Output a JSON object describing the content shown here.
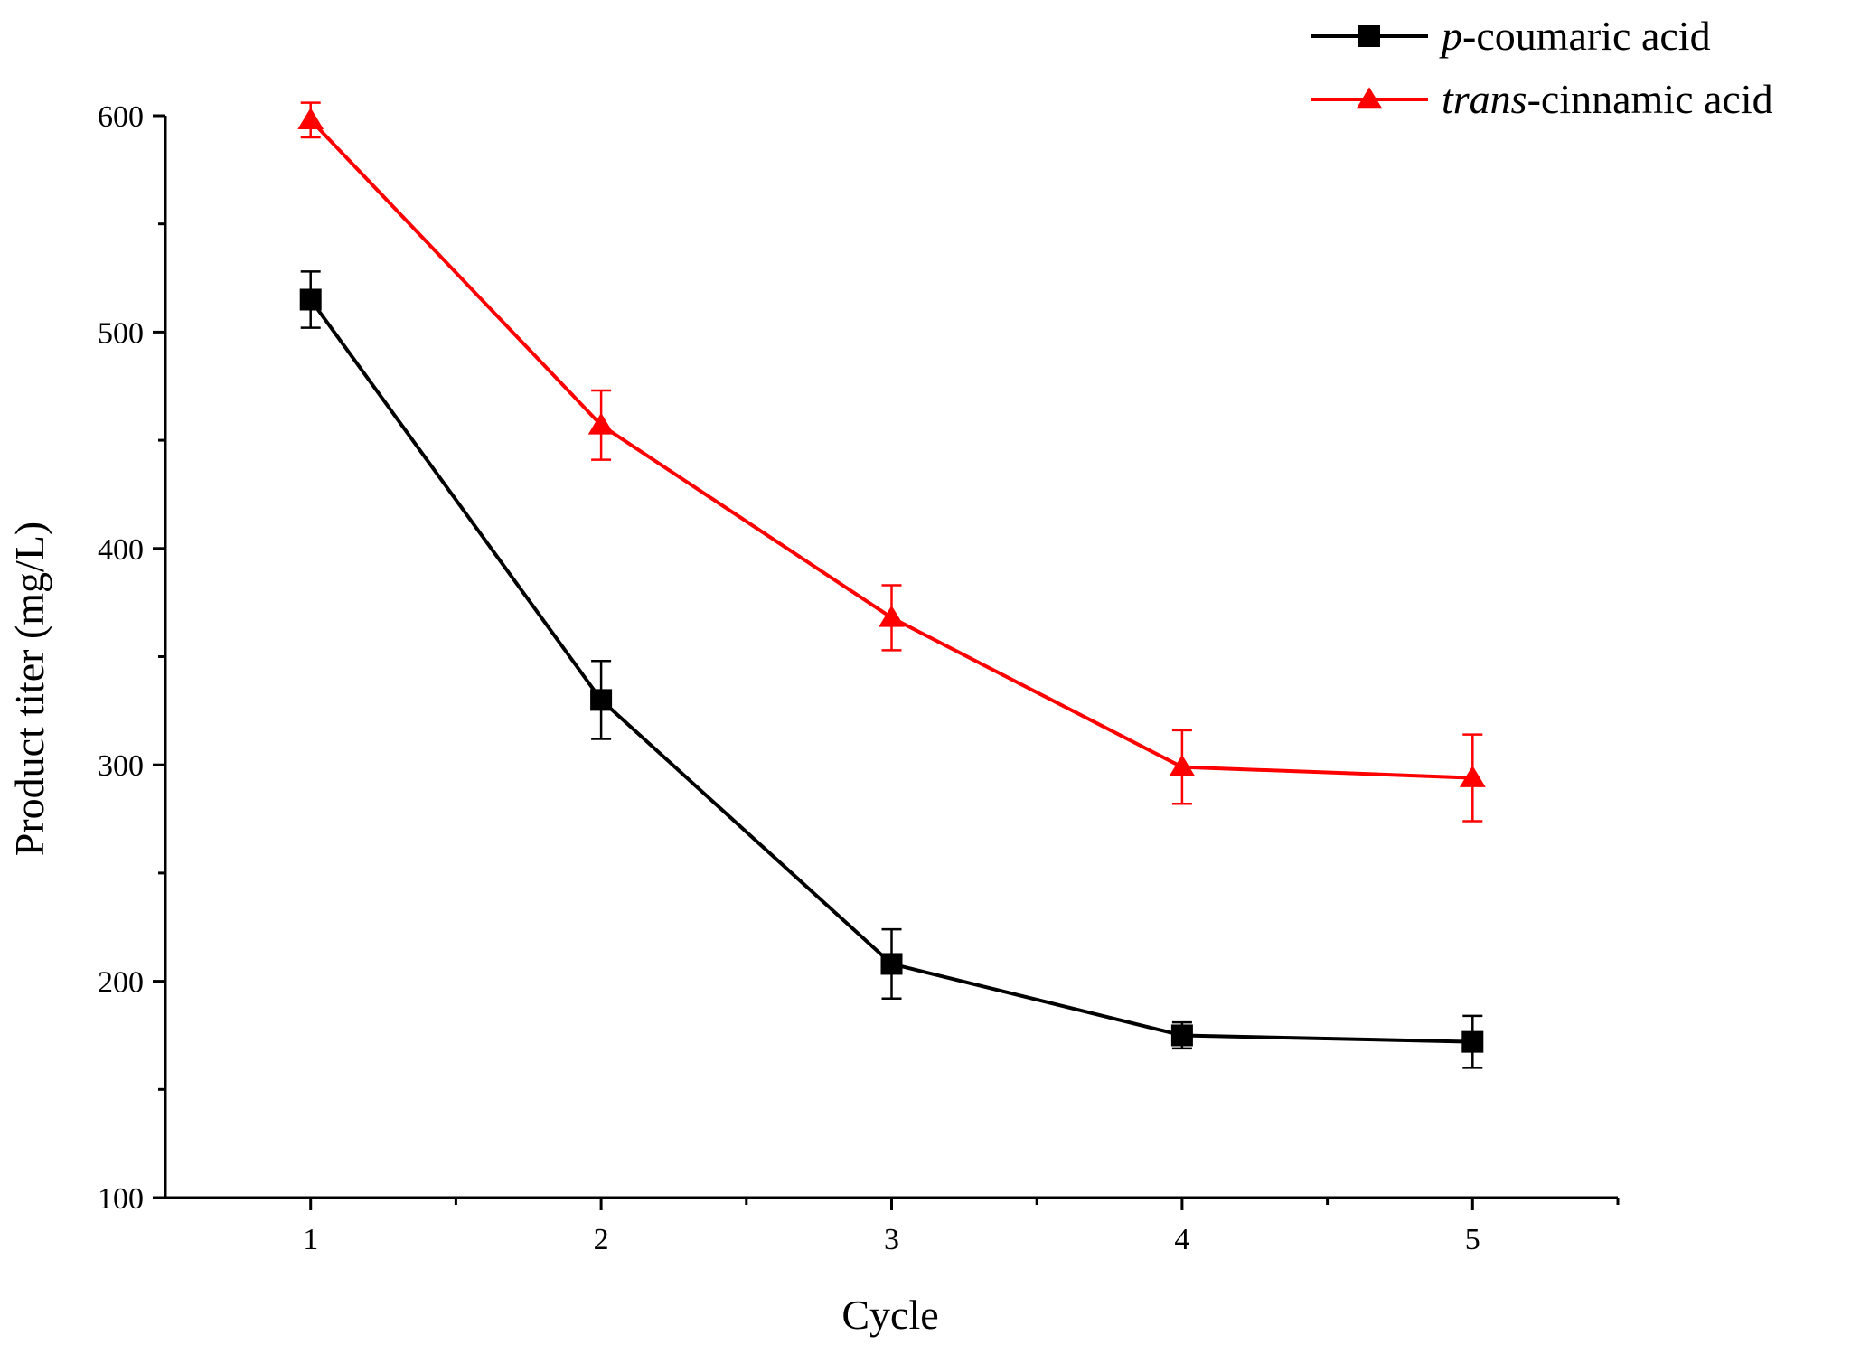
{
  "chart_data": {
    "type": "line",
    "title": "",
    "xlabel": "Cycle",
    "ylabel": "Product titer (mg/L)",
    "x": [
      1,
      2,
      3,
      4,
      5
    ],
    "xlim": [
      0.5,
      5.5
    ],
    "ylim": [
      100,
      600
    ],
    "xticks": [
      "1",
      "2",
      "3",
      "4",
      "5"
    ],
    "yticks": [
      "100",
      "200",
      "300",
      "400",
      "500",
      "600"
    ],
    "grid": false,
    "legend_position": "top-right",
    "series": [
      {
        "name_italic": "p",
        "name_rest": "-coumaric acid",
        "color": "#000000",
        "marker": "square",
        "values": [
          515,
          330,
          208,
          175,
          172
        ],
        "errors": [
          13,
          18,
          16,
          6,
          12
        ]
      },
      {
        "name_italic": "trans",
        "name_rest": "-cinnamic acid",
        "color": "#ff0000",
        "marker": "triangle",
        "values": [
          598,
          457,
          368,
          299,
          294
        ],
        "errors": [
          8,
          16,
          15,
          17,
          20
        ]
      }
    ]
  }
}
